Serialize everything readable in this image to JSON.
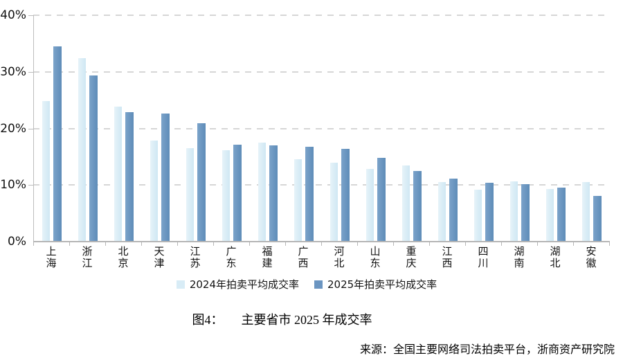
{
  "chart_data": {
    "type": "bar",
    "title": "主要省市 2025 年成交率",
    "categories": [
      "上海",
      "浙江",
      "北京",
      "天津",
      "江苏",
      "广东",
      "福建",
      "广西",
      "河北",
      "山东",
      "重庆",
      "江西",
      "四川",
      "湖南",
      "湖北",
      "安徽"
    ],
    "series": [
      {
        "name": "2024年拍卖平均成交率",
        "color": "#d8ecf6",
        "values": [
          24.8,
          32.4,
          23.8,
          17.9,
          16.5,
          16.2,
          17.5,
          14.6,
          13.9,
          12.9,
          13.5,
          10.5,
          9.2,
          10.6,
          9.3,
          10.5
        ]
      },
      {
        "name": "2025年拍卖平均成交率",
        "color": "#6b95c1",
        "values": [
          34.5,
          29.3,
          22.9,
          22.6,
          20.9,
          17.1,
          17.0,
          16.7,
          16.4,
          14.8,
          12.5,
          11.1,
          10.4,
          10.1,
          9.5,
          8.1
        ]
      }
    ],
    "ylim": [
      0,
      40
    ],
    "yticks": [
      {
        "value": 40,
        "label": "40%"
      },
      {
        "value": 30,
        "label": "30%"
      },
      {
        "value": 20,
        "label": "20%"
      },
      {
        "value": 10,
        "label": "10%"
      },
      {
        "value": 0,
        "label": "0%"
      }
    ],
    "grid": "horizontal-dashed",
    "legend_position": "bottom-center"
  },
  "caption": {
    "label": "图4：",
    "text": "主要省市 2025 年成交率"
  },
  "source": "来源：全国主要网络司法拍卖平台，浙商资产研究院"
}
